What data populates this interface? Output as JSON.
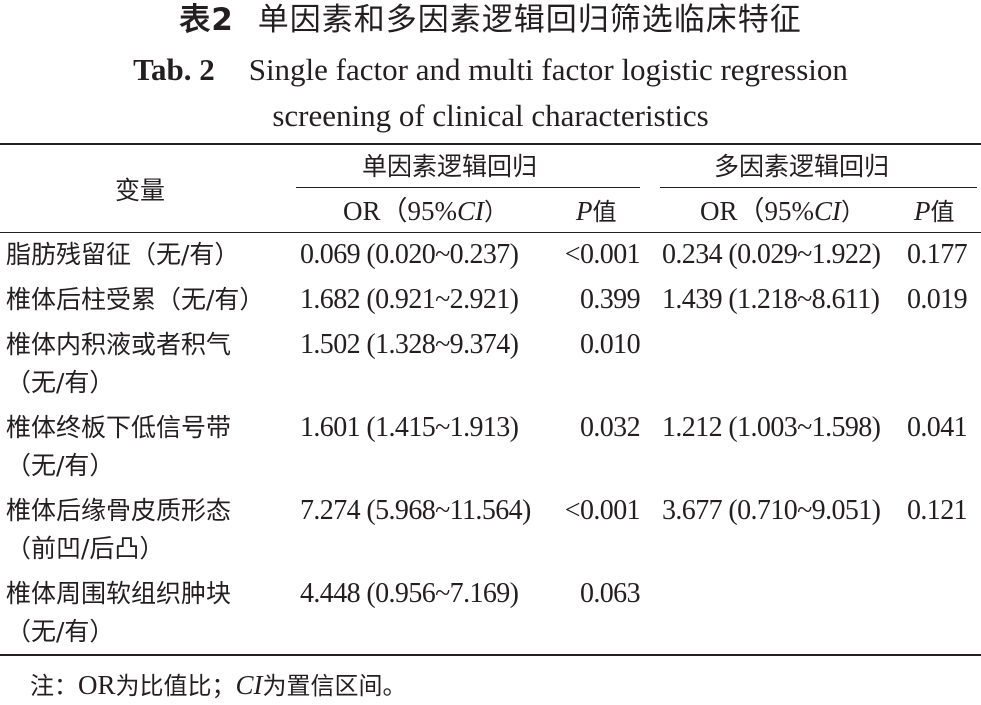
{
  "title_cn": {
    "number": "表2",
    "text": "单因素和多因素逻辑回归筛选临床特征"
  },
  "title_en": {
    "number": "Tab. 2",
    "line1": "Single factor and multi factor logistic regression",
    "line2": "screening of clinical characteristics"
  },
  "header": {
    "variable": "变量",
    "group_single": "单因素逻辑回归",
    "group_multi": "多因素逻辑回归",
    "or_prefix": "OR（95%",
    "ci": "CI",
    "or_suffix": "）",
    "p": "P",
    "p_suffix": "值"
  },
  "rows": [
    {
      "var1": "脂肪残留征（无/有）",
      "var2": "",
      "s_or": "0.069 (0.020~0.237)",
      "s_p": "<0.001",
      "m_or": "0.234 (0.029~1.922)",
      "m_p": "0.177"
    },
    {
      "var1": "椎体后柱受累（无/有）",
      "var2": "",
      "s_or": "1.682 (0.921~2.921)",
      "s_p": "0.399",
      "m_or": "1.439 (1.218~8.611)",
      "m_p": "0.019"
    },
    {
      "var1": "椎体内积液或者积气",
      "var2": "（无/有）",
      "s_or": "1.502 (1.328~9.374)",
      "s_p": "0.010",
      "m_or": "",
      "m_p": ""
    },
    {
      "var1": "椎体终板下低信号带",
      "var2": "（无/有）",
      "s_or": "1.601 (1.415~1.913)",
      "s_p": "0.032",
      "m_or": "1.212 (1.003~1.598)",
      "m_p": "0.041"
    },
    {
      "var1": "椎体后缘骨皮质形态",
      "var2": "（前凹/后凸）",
      "s_or": "7.274 (5.968~11.564)",
      "s_p": "<0.001",
      "m_or": "3.677 (0.710~9.051)",
      "m_p": "0.121"
    },
    {
      "var1": "椎体周围软组织肿块",
      "var2": "（无/有）",
      "s_or": "4.448 (0.956~7.169)",
      "s_p": "0.063",
      "m_or": "",
      "m_p": ""
    }
  ],
  "note": {
    "prefix": "注：",
    "or": "OR",
    "or_text": "为比值比；",
    "ci": "CI",
    "ci_text": "为置信区间。"
  }
}
